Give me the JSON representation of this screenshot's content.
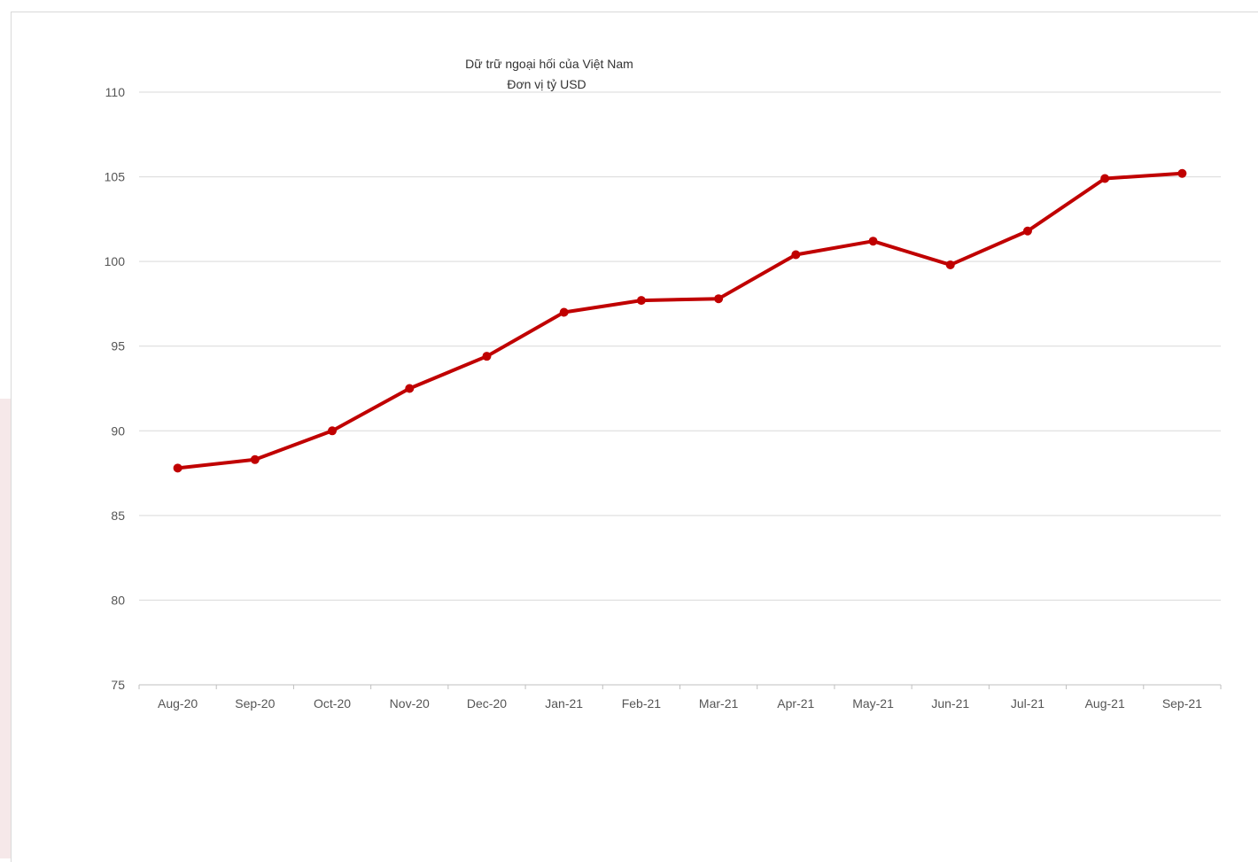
{
  "chart_data": {
    "type": "line",
    "title": "Dữ trữ ngoại hối của Việt Nam",
    "subtitle": "Đơn vị tỷ USD",
    "xlabel": "",
    "ylabel": "",
    "categories": [
      "Aug-20",
      "Sep-20",
      "Oct-20",
      "Nov-20",
      "Dec-20",
      "Jan-21",
      "Feb-21",
      "Mar-21",
      "Apr-21",
      "May-21",
      "Jun-21",
      "Jul-21",
      "Aug-21",
      "Sep-21"
    ],
    "series": [
      {
        "values": [
          87.8,
          88.3,
          90.0,
          92.5,
          94.4,
          97.0,
          97.7,
          97.8,
          100.4,
          101.2,
          99.8,
          101.8,
          104.9,
          105.2
        ],
        "color": "#c00000"
      }
    ],
    "ylim": [
      75,
      110
    ],
    "yticks": [
      75,
      80,
      85,
      90,
      95,
      100,
      105,
      110
    ],
    "grid": true,
    "legend": "none"
  }
}
